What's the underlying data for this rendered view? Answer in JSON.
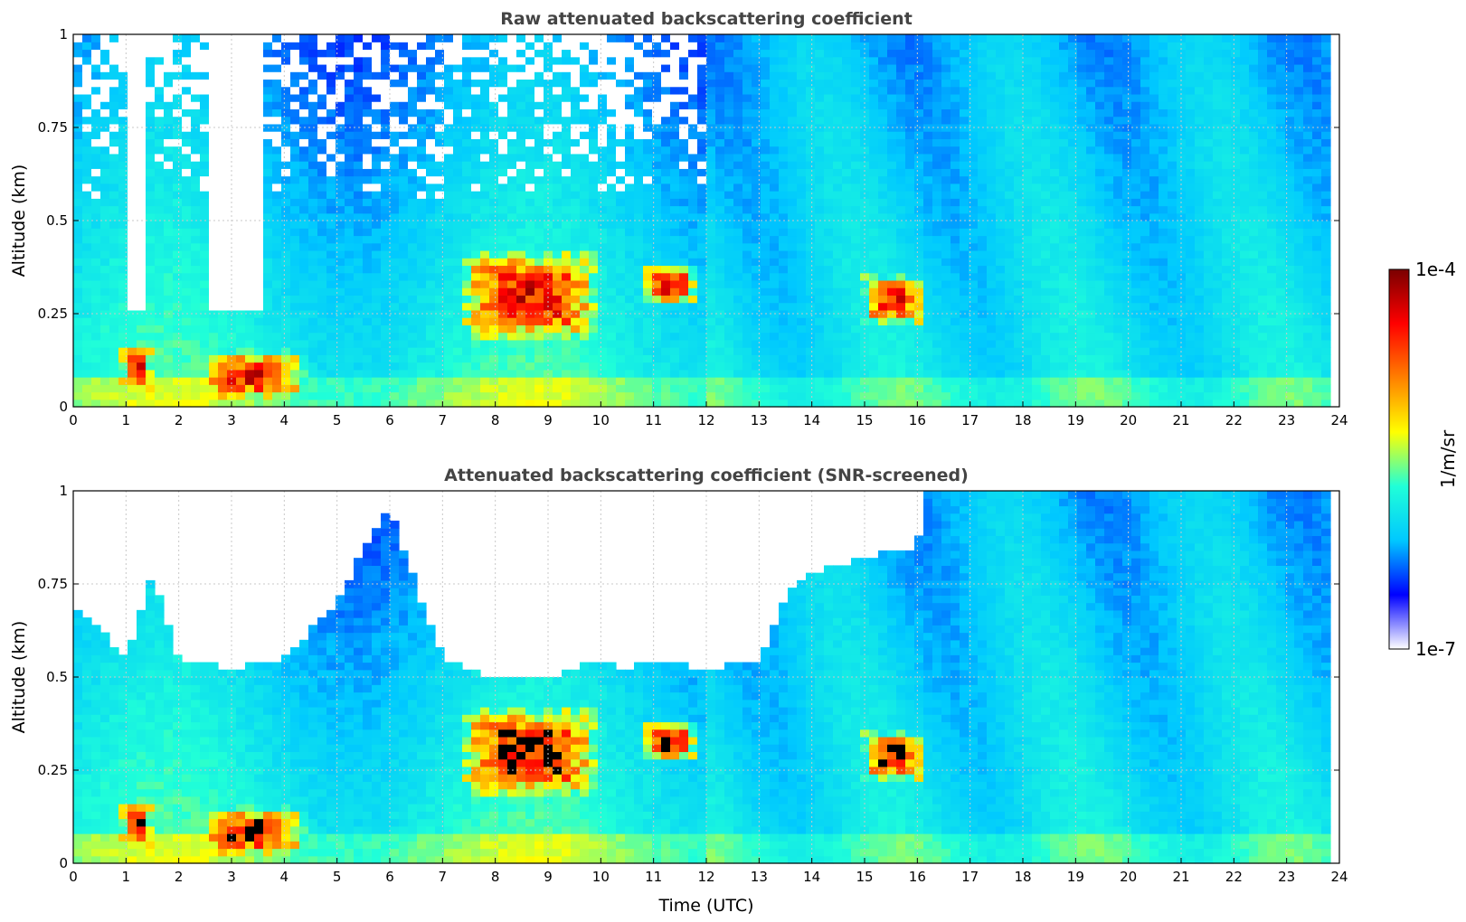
{
  "chart_data": [
    {
      "type": "heatmap",
      "title": "Raw attenuated backscattering coefficient",
      "ylabel": "Altitude (km)",
      "xlabel": "",
      "xlim": [
        0,
        24
      ],
      "ylim": [
        0,
        1
      ],
      "x_ticks": [
        "0",
        "1",
        "2",
        "3",
        "4",
        "5",
        "6",
        "7",
        "8",
        "9",
        "10",
        "11",
        "12",
        "13",
        "14",
        "15",
        "16",
        "17",
        "18",
        "19",
        "20",
        "21",
        "22",
        "23",
        "24"
      ],
      "y_ticks": [
        "0",
        "0.25",
        "0.5",
        "0.75",
        "1"
      ],
      "grid": true,
      "screened": false,
      "features": [
        {
          "kind": "aerosol_layer",
          "t_start": 0.9,
          "t_end": 1.5,
          "z_low": 0.03,
          "z_high": 0.17
        },
        {
          "kind": "aerosol_layer",
          "t_start": 2.4,
          "t_end": 4.4,
          "z_low": 0.02,
          "z_high": 0.15
        },
        {
          "kind": "plume",
          "t_start": 7.3,
          "t_end": 10.0,
          "z_low": 0.18,
          "z_high": 0.42
        },
        {
          "kind": "plume",
          "t_start": 10.8,
          "t_end": 11.8,
          "z_low": 0.28,
          "z_high": 0.38
        },
        {
          "kind": "plume",
          "t_start": 15.0,
          "t_end": 16.1,
          "z_low": 0.22,
          "z_high": 0.35
        }
      ]
    },
    {
      "type": "heatmap",
      "title": "Attenuated backscattering coefficient (SNR-screened)",
      "ylabel": "Altitude (km)",
      "xlabel": "Time (UTC)",
      "xlim": [
        0,
        24
      ],
      "ylim": [
        0,
        1
      ],
      "x_ticks": [
        "0",
        "1",
        "2",
        "3",
        "4",
        "5",
        "6",
        "7",
        "8",
        "9",
        "10",
        "11",
        "12",
        "13",
        "14",
        "15",
        "16",
        "17",
        "18",
        "19",
        "20",
        "21",
        "22",
        "23",
        "24"
      ],
      "y_ticks": [
        "0",
        "0.25",
        "0.5",
        "0.75",
        "1"
      ],
      "grid": true,
      "screened": true,
      "valid_top_profile": {
        "time": [
          0,
          1,
          1.5,
          2,
          3,
          4,
          5,
          5.5,
          6,
          7,
          7.5,
          8,
          9,
          10,
          10.5,
          11,
          12,
          13,
          13.5,
          14,
          15,
          16,
          16.2,
          17,
          17.5,
          24
        ],
        "top_km": [
          0.7,
          0.55,
          0.78,
          0.55,
          0.52,
          0.55,
          0.7,
          0.85,
          0.95,
          0.55,
          0.52,
          0.5,
          0.5,
          0.55,
          0.52,
          0.55,
          0.52,
          0.55,
          0.72,
          0.78,
          0.82,
          0.85,
          1.0,
          1.0,
          1.0,
          1.0
        ]
      }
    }
  ],
  "colorbar": {
    "label": "1/m/sr",
    "max_label": "1e-4",
    "min_label": "1e-7",
    "scale": "log",
    "range": [
      1e-07,
      0.0001
    ],
    "colormap": [
      "#ffffff",
      "#0000ff",
      "#00c8ff",
      "#20ffd8",
      "#ffff00",
      "#ff8000",
      "#ff0000",
      "#7a0000"
    ]
  }
}
